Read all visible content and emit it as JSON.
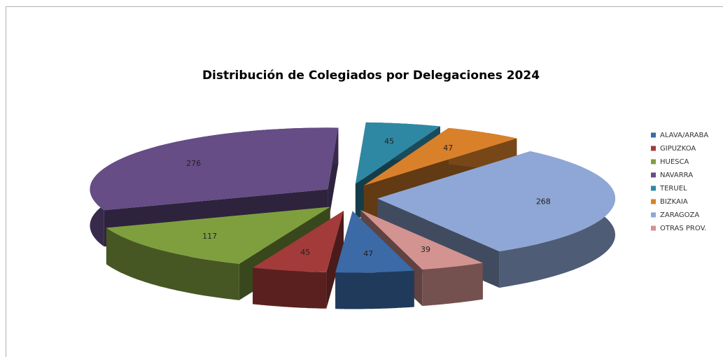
{
  "chart_data": {
    "type": "pie",
    "title": "Distribución de Colegiados por Delegaciones 2024",
    "categories": [
      "ALAVA/ARABA",
      "GIPUZKOA",
      "HUESCA",
      "NAVARRA",
      "TERUEL",
      "BIZKAIA",
      "ZARAGOZA",
      "OTRAS PROV."
    ],
    "values": [
      47,
      45,
      117,
      276,
      45,
      47,
      268,
      39
    ],
    "colors": [
      "#3b6aa6",
      "#a33b3b",
      "#7f9f3f",
      "#664d86",
      "#2f88a3",
      "#d9812a",
      "#8ea7d6",
      "#d39390"
    ],
    "legend": "right"
  }
}
